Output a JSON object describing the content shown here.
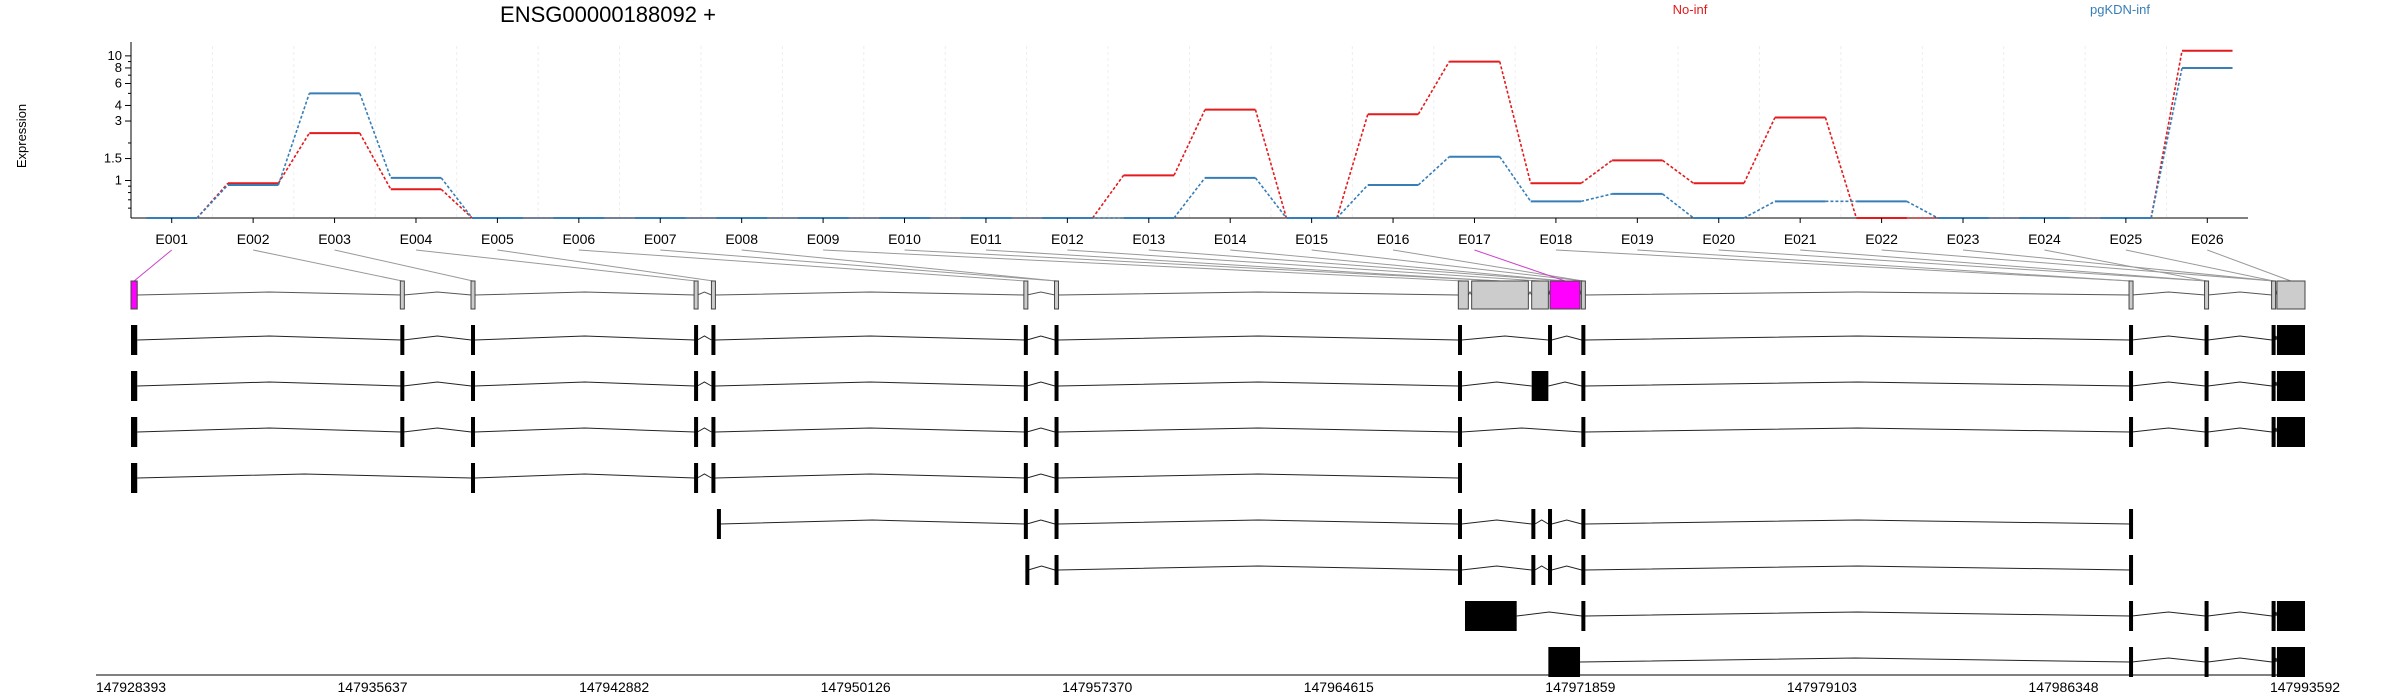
{
  "title": "ENSG00000188092 +",
  "ylabel": "Expression",
  "legend": [
    {
      "label": "No-inf",
      "color": "#e41a1c"
    },
    {
      "label": "pgKDN-inf",
      "color": "#377eb8"
    }
  ],
  "chart_data": {
    "type": "line",
    "title": "ENSG00000188092 +",
    "ylabel": "Expression",
    "y_scale": "log",
    "yticks": [
      "10",
      "8",
      "6",
      "4",
      "3",
      "1.5",
      "1"
    ],
    "categories": [
      "E001",
      "E002",
      "E003",
      "E004",
      "E005",
      "E006",
      "E007",
      "E008",
      "E009",
      "E010",
      "E011",
      "E012",
      "E013",
      "E014",
      "E015",
      "E016",
      "E017",
      "E018",
      "E019",
      "E020",
      "E021",
      "E022",
      "E023",
      "E024",
      "E025",
      "E026"
    ],
    "series": [
      {
        "name": "No-inf",
        "color": "#e41a1c",
        "values": [
          0.5,
          0.95,
          2.4,
          0.85,
          0.5,
          0.5,
          0.5,
          0.5,
          0.5,
          0.5,
          0.5,
          0.5,
          1.1,
          3.7,
          0.5,
          3.4,
          9.0,
          0.95,
          1.45,
          0.95,
          3.2,
          0.5,
          0.5,
          0.5,
          0.5,
          11.0
        ]
      },
      {
        "name": "pgKDN-inf",
        "color": "#377eb8",
        "values": [
          0.5,
          0.92,
          5.0,
          1.05,
          0.5,
          0.5,
          0.5,
          0.5,
          0.5,
          0.5,
          0.5,
          0.5,
          0.5,
          1.05,
          0.5,
          0.92,
          1.55,
          0.68,
          0.78,
          0.5,
          0.68,
          0.68,
          0.5,
          0.5,
          0.5,
          8.0
        ]
      }
    ],
    "highlighted_exons": [
      "E001",
      "E017"
    ],
    "genomic_ticks": [
      "147928393",
      "147935637",
      "147942882",
      "147950126",
      "147957370",
      "147964615",
      "147971859",
      "147979103",
      "147986348",
      "147993592"
    ],
    "exon_coords": [
      [
        147928393,
        147928580
      ],
      [
        147936500,
        147936560
      ],
      [
        147938600,
        147938700
      ],
      [
        147945300,
        147945380
      ],
      [
        147945800,
        147945920
      ],
      [
        147955200,
        147955260
      ],
      [
        147956100,
        147956200
      ],
      [
        147968200,
        147968500
      ],
      [
        147968600,
        147970300
      ],
      [
        147970400,
        147970900
      ],
      [
        147970950,
        147971850
      ],
      [
        147971900,
        147972000
      ],
      [
        147988350,
        147988400
      ],
      [
        147990600,
        147990680
      ],
      [
        147992600,
        147992700
      ],
      [
        147992750,
        147993592
      ]
    ],
    "transcripts": [
      {
        "exons": [
          [
            147928393,
            147928580
          ],
          [
            147936500,
            147936560
          ],
          [
            147938600,
            147938700
          ],
          [
            147945300,
            147945380
          ],
          [
            147945800,
            147945920
          ],
          [
            147955200,
            147955260
          ],
          [
            147956100,
            147956200
          ],
          [
            147968200,
            147968300
          ],
          [
            147970900,
            147971000
          ],
          [
            147971900,
            147972000
          ],
          [
            147988350,
            147988400
          ],
          [
            147990600,
            147990680
          ],
          [
            147992600,
            147992700
          ],
          [
            147992750,
            147993592
          ]
        ]
      },
      {
        "exons": [
          [
            147928393,
            147928580
          ],
          [
            147936500,
            147936560
          ],
          [
            147938600,
            147938700
          ],
          [
            147945300,
            147945380
          ],
          [
            147945800,
            147945920
          ],
          [
            147955200,
            147955260
          ],
          [
            147956100,
            147956200
          ],
          [
            147968200,
            147968300
          ],
          [
            147970400,
            147970900
          ],
          [
            147971900,
            147972000
          ],
          [
            147988350,
            147988400
          ],
          [
            147990600,
            147990680
          ],
          [
            147992600,
            147992700
          ],
          [
            147992750,
            147993592
          ]
        ]
      },
      {
        "exons": [
          [
            147928393,
            147928580
          ],
          [
            147936500,
            147936560
          ],
          [
            147938600,
            147938700
          ],
          [
            147945300,
            147945380
          ],
          [
            147945800,
            147945920
          ],
          [
            147955200,
            147955260
          ],
          [
            147956100,
            147956200
          ],
          [
            147968200,
            147968300
          ],
          [
            147971900,
            147972000
          ],
          [
            147988350,
            147988400
          ],
          [
            147990600,
            147990680
          ],
          [
            147992600,
            147992700
          ],
          [
            147992750,
            147993592
          ]
        ]
      },
      {
        "exons": [
          [
            147928393,
            147928580
          ],
          [
            147938600,
            147938700
          ],
          [
            147945300,
            147945380
          ],
          [
            147945800,
            147945920
          ],
          [
            147955200,
            147955260
          ],
          [
            147956100,
            147956200
          ],
          [
            147968200,
            147968300
          ]
        ]
      },
      {
        "exons": [
          [
            147946000,
            147946050
          ],
          [
            147955200,
            147955260
          ],
          [
            147956100,
            147956200
          ],
          [
            147968200,
            147968300
          ],
          [
            147970400,
            147970500
          ],
          [
            147970900,
            147971000
          ],
          [
            147971900,
            147972000
          ],
          [
            147988350,
            147988400
          ]
        ]
      },
      {
        "exons": [
          [
            147955250,
            147955300
          ],
          [
            147956100,
            147956200
          ],
          [
            147968200,
            147968300
          ],
          [
            147970400,
            147970500
          ],
          [
            147970900,
            147971000
          ],
          [
            147971900,
            147972000
          ],
          [
            147988350,
            147988400
          ]
        ]
      },
      {
        "exons": [
          [
            147968400,
            147969950
          ],
          [
            147971900,
            147972000
          ],
          [
            147988350,
            147988400
          ],
          [
            147990600,
            147990680
          ],
          [
            147992600,
            147992700
          ],
          [
            147992750,
            147993592
          ]
        ]
      },
      {
        "exons": [
          [
            147970900,
            147971850
          ],
          [
            147988350,
            147988400
          ],
          [
            147990600,
            147990680
          ],
          [
            147992600,
            147992700
          ],
          [
            147992750,
            147993592
          ]
        ]
      }
    ]
  }
}
